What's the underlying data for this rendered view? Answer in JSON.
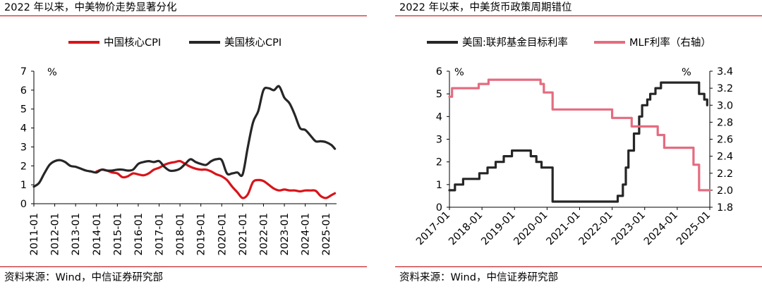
{
  "colors": {
    "rule": "#c00000",
    "axis": "#000000",
    "china": "#d7141a",
    "us": "#262626",
    "fed": "#262626",
    "mlf": "#e46c80"
  },
  "left": {
    "title": "2022 年以来，中美物价走势显著分化",
    "source": "资料来源：Wind，中信证券研究部"
  },
  "right": {
    "title": "2022 年以来，中美货币政策周期错位",
    "source": "资料来源：Wind，中信证券研究部"
  },
  "chart_data": [
    {
      "type": "line",
      "title": "2022 年以来，中美物价走势显著分化",
      "ylabel": "%",
      "ylim": [
        0,
        7
      ],
      "yticks": [
        "0",
        "1",
        "2",
        "3",
        "4",
        "5",
        "6",
        "7"
      ],
      "xlim": [
        2011.0,
        2025.5
      ],
      "xticks": [
        "2011-01",
        "2012-01",
        "2013-01",
        "2014-01",
        "2015-01",
        "2016-01",
        "2017-01",
        "2018-01",
        "2019-01",
        "2020-01",
        "2021-01",
        "2022-01",
        "2023-01",
        "2024-01",
        "2025-01"
      ],
      "legend": [
        "中国核心CPI",
        "美国核心CPI"
      ],
      "legend_position": "top",
      "series": [
        {
          "name": "中国核心CPI",
          "color": "#d7141a",
          "points": [
            [
              2014.0,
              1.7
            ],
            [
              2014.25,
              1.8
            ],
            [
              2014.5,
              1.75
            ],
            [
              2014.75,
              1.65
            ],
            [
              2015.0,
              1.6
            ],
            [
              2015.25,
              1.4
            ],
            [
              2015.5,
              1.45
            ],
            [
              2015.75,
              1.6
            ],
            [
              2016.0,
              1.55
            ],
            [
              2016.25,
              1.5
            ],
            [
              2016.5,
              1.6
            ],
            [
              2016.75,
              1.8
            ],
            [
              2017.0,
              1.9
            ],
            [
              2017.25,
              2.05
            ],
            [
              2017.5,
              2.15
            ],
            [
              2017.75,
              2.2
            ],
            [
              2018.0,
              2.25
            ],
            [
              2018.25,
              2.1
            ],
            [
              2018.5,
              1.95
            ],
            [
              2018.75,
              1.85
            ],
            [
              2019.0,
              1.8
            ],
            [
              2019.25,
              1.8
            ],
            [
              2019.5,
              1.7
            ],
            [
              2019.75,
              1.55
            ],
            [
              2020.0,
              1.45
            ],
            [
              2020.25,
              1.25
            ],
            [
              2020.5,
              0.9
            ],
            [
              2020.75,
              0.6
            ],
            [
              2021.0,
              0.3
            ],
            [
              2021.25,
              0.5
            ],
            [
              2021.5,
              1.15
            ],
            [
              2021.75,
              1.25
            ],
            [
              2022.0,
              1.2
            ],
            [
              2022.25,
              1.0
            ],
            [
              2022.5,
              0.8
            ],
            [
              2022.75,
              0.7
            ],
            [
              2023.0,
              0.75
            ],
            [
              2023.25,
              0.7
            ],
            [
              2023.5,
              0.7
            ],
            [
              2023.75,
              0.65
            ],
            [
              2024.0,
              0.7
            ],
            [
              2024.25,
              0.7
            ],
            [
              2024.5,
              0.68
            ],
            [
              2024.75,
              0.4
            ],
            [
              2025.0,
              0.3
            ],
            [
              2025.25,
              0.45
            ],
            [
              2025.42,
              0.55
            ]
          ]
        },
        {
          "name": "美国核心CPI",
          "color": "#262626",
          "points": [
            [
              2011.0,
              0.9
            ],
            [
              2011.25,
              1.1
            ],
            [
              2011.5,
              1.6
            ],
            [
              2011.75,
              2.05
            ],
            [
              2012.0,
              2.25
            ],
            [
              2012.25,
              2.3
            ],
            [
              2012.5,
              2.2
            ],
            [
              2012.75,
              2.0
            ],
            [
              2013.0,
              1.95
            ],
            [
              2013.25,
              1.85
            ],
            [
              2013.5,
              1.75
            ],
            [
              2013.75,
              1.7
            ],
            [
              2014.0,
              1.65
            ],
            [
              2014.25,
              1.8
            ],
            [
              2014.5,
              1.75
            ],
            [
              2014.75,
              1.75
            ],
            [
              2015.0,
              1.8
            ],
            [
              2015.25,
              1.8
            ],
            [
              2015.5,
              1.75
            ],
            [
              2015.75,
              1.8
            ],
            [
              2016.0,
              2.1
            ],
            [
              2016.25,
              2.2
            ],
            [
              2016.5,
              2.25
            ],
            [
              2016.75,
              2.2
            ],
            [
              2017.0,
              2.25
            ],
            [
              2017.25,
              1.95
            ],
            [
              2017.5,
              1.75
            ],
            [
              2017.75,
              1.75
            ],
            [
              2018.0,
              1.85
            ],
            [
              2018.25,
              2.1
            ],
            [
              2018.5,
              2.35
            ],
            [
              2018.75,
              2.2
            ],
            [
              2019.0,
              2.1
            ],
            [
              2019.25,
              2.05
            ],
            [
              2019.5,
              2.25
            ],
            [
              2019.75,
              2.35
            ],
            [
              2020.0,
              2.3
            ],
            [
              2020.25,
              1.6
            ],
            [
              2020.5,
              1.6
            ],
            [
              2020.75,
              1.65
            ],
            [
              2021.0,
              1.55
            ],
            [
              2021.25,
              3.0
            ],
            [
              2021.5,
              4.3
            ],
            [
              2021.75,
              4.9
            ],
            [
              2022.0,
              6.0
            ],
            [
              2022.25,
              6.1
            ],
            [
              2022.5,
              6.0
            ],
            [
              2022.75,
              6.2
            ],
            [
              2023.0,
              5.6
            ],
            [
              2023.25,
              5.3
            ],
            [
              2023.5,
              4.7
            ],
            [
              2023.75,
              4.0
            ],
            [
              2024.0,
              3.9
            ],
            [
              2024.25,
              3.6
            ],
            [
              2024.5,
              3.3
            ],
            [
              2024.75,
              3.3
            ],
            [
              2025.0,
              3.25
            ],
            [
              2025.25,
              3.1
            ],
            [
              2025.42,
              2.9
            ]
          ]
        }
      ]
    },
    {
      "type": "line",
      "title": "2022 年以来，中美货币政策周期错位",
      "ylabel": "%",
      "ylim": [
        0,
        6
      ],
      "yticks": [
        "0",
        "1",
        "2",
        "3",
        "4",
        "5",
        "6"
      ],
      "y2label": "%",
      "y2lim": [
        1.8,
        3.4
      ],
      "y2ticks": [
        "1.8",
        "2.0",
        "2.2",
        "2.4",
        "2.6",
        "2.8",
        "3.0",
        "3.2",
        "3.4"
      ],
      "xlim": [
        2017.0,
        2025.0
      ],
      "xticks": [
        "2017-01",
        "2018-01",
        "2019-01",
        "2020-01",
        "2021-01",
        "2022-01",
        "2023-01",
        "2024-01",
        "2025-01"
      ],
      "legend": [
        "美国:联邦基金目标利率",
        "MLF利率（右轴）"
      ],
      "legend_position": "top",
      "series": [
        {
          "name": "美国:联邦基金目标利率",
          "color": "#262626",
          "axis": "left",
          "points": [
            [
              2017.0,
              0.75
            ],
            [
              2017.17,
              1.0
            ],
            [
              2017.42,
              1.25
            ],
            [
              2017.92,
              1.5
            ],
            [
              2018.17,
              1.75
            ],
            [
              2018.42,
              2.0
            ],
            [
              2018.67,
              2.25
            ],
            [
              2018.92,
              2.5
            ],
            [
              2019.5,
              2.25
            ],
            [
              2019.67,
              2.0
            ],
            [
              2019.83,
              1.75
            ],
            [
              2020.17,
              0.25
            ],
            [
              2022.17,
              0.5
            ],
            [
              2022.33,
              1.0
            ],
            [
              2022.42,
              1.75
            ],
            [
              2022.5,
              2.5
            ],
            [
              2022.67,
              3.25
            ],
            [
              2022.83,
              4.0
            ],
            [
              2022.92,
              4.5
            ],
            [
              2023.08,
              4.75
            ],
            [
              2023.17,
              5.0
            ],
            [
              2023.33,
              5.25
            ],
            [
              2023.5,
              5.5
            ],
            [
              2024.67,
              5.0
            ],
            [
              2024.83,
              4.75
            ],
            [
              2024.92,
              4.5
            ]
          ]
        },
        {
          "name": "MLF利率（右轴）",
          "color": "#e46c80",
          "axis": "right",
          "points": [
            [
              2017.0,
              3.1
            ],
            [
              2017.08,
              3.2
            ],
            [
              2017.9,
              3.25
            ],
            [
              2018.2,
              3.3
            ],
            [
              2019.8,
              3.25
            ],
            [
              2019.9,
              3.15
            ],
            [
              2020.17,
              2.95
            ],
            [
              2021.92,
              2.95
            ],
            [
              2022.0,
              2.85
            ],
            [
              2022.6,
              2.75
            ],
            [
              2023.4,
              2.65
            ],
            [
              2023.6,
              2.5
            ],
            [
              2024.5,
              2.3
            ],
            [
              2024.67,
              2.0
            ],
            [
              2025.0,
              2.0
            ]
          ]
        }
      ]
    }
  ]
}
